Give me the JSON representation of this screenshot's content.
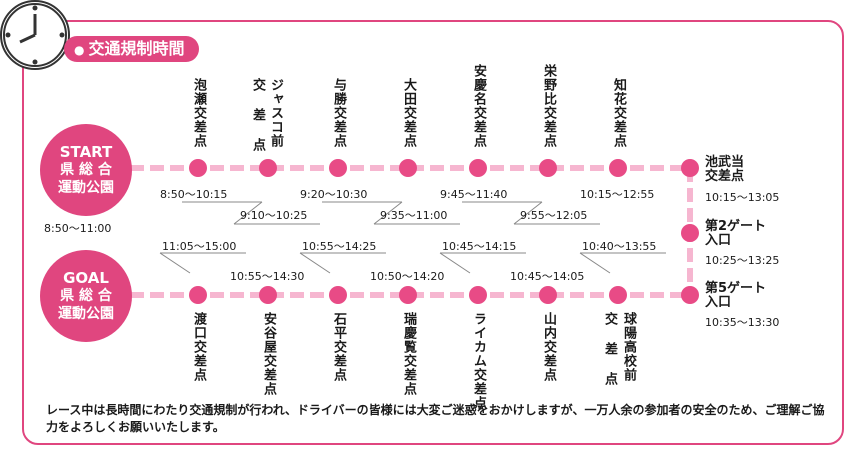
{
  "title": "交通規制時間",
  "title_bullet": "●",
  "colors": {
    "accent": "#e0467f",
    "route": "#f6b6d0",
    "dot": "#e84b86"
  },
  "start": {
    "word": "START",
    "line1": "県 総 合",
    "line2": "運動公園",
    "time": "8:50～11:00"
  },
  "goal": {
    "word": "GOAL",
    "line1": "県 総 合",
    "line2": "運動公園"
  },
  "top_stops": [
    {
      "label": "泡瀬交差点"
    },
    {
      "label": "ジャスコ前",
      "label2": "交 差 点"
    },
    {
      "label": "与勝交差点"
    },
    {
      "label": "大田交差点"
    },
    {
      "label": "安慶名交差点"
    },
    {
      "label": "栄野比交差点"
    },
    {
      "label": "知花交差点"
    }
  ],
  "top_times_upper": [
    "8:50～10:15",
    "9:20～10:30",
    "9:45～11:40",
    "10:15～12:55"
  ],
  "top_times_lower": [
    "9:10～10:25",
    "9:35～11:00",
    "9:55～12:05"
  ],
  "gates": [
    {
      "label1": "池武当",
      "label2": "交差点",
      "time": "10:15～13:05"
    },
    {
      "label1": "第2ゲート",
      "label2": "入口",
      "time": "10:25～13:25"
    },
    {
      "label1": "第5ゲート",
      "label2": "入口",
      "time": "10:35～13:30"
    }
  ],
  "bottom_stops": [
    {
      "label": "渡口交差点"
    },
    {
      "label": "安谷屋交差点"
    },
    {
      "label": "石平交差点"
    },
    {
      "label": "瑞慶覧交差点"
    },
    {
      "label": "ライカム交差点"
    },
    {
      "label": "山内交差点"
    },
    {
      "label": "球陽高校前",
      "label2": "交 差 点"
    }
  ],
  "bottom_times_upper": [
    "11:05～15:00",
    "10:55～14:25",
    "10:45～14:15",
    "10:40～13:55"
  ],
  "bottom_times_lower": [
    "10:55～14:30",
    "10:50～14:20",
    "10:45～14:05"
  ],
  "note": "レース中は長時間にわたり交通規制が行われ、ドライバーの皆様には大変ご迷惑をおかけしますが、一万人余の参加者の安全のため、ご理解ご協力をよろしくお願いいたします。"
}
